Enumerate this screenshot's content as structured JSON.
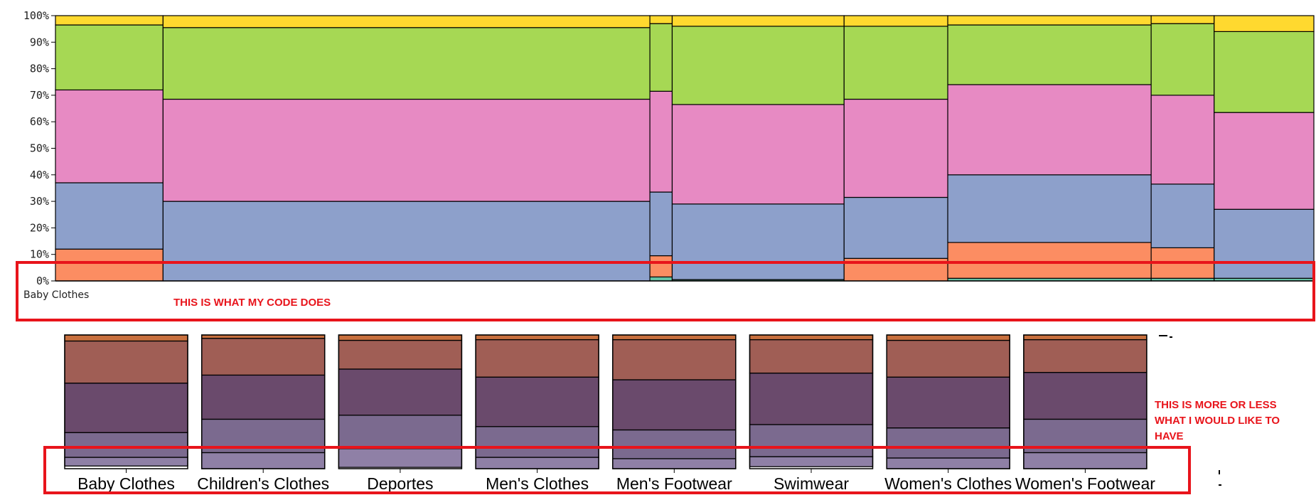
{
  "colors": {
    "annotation": "#e8141b",
    "top_palette": [
      "#66c2a5",
      "#fc8d62",
      "#8da0cb",
      "#e78ac3",
      "#a6d854",
      "#ffd92f"
    ],
    "bottom_palette": [
      "#8f80a6",
      "#7b6a8f",
      "#6a4a6c",
      "#a05e55",
      "#c8703e"
    ]
  },
  "annotations": {
    "top": "THIS IS WHAT MY CODE DOES",
    "bottom": [
      "THIS IS MORE OR LESS",
      "WHAT I WOULD LIKE TO",
      "HAVE"
    ]
  },
  "chart_data": [
    {
      "type": "bar",
      "subtype": "stacked-100-marimekko",
      "y_ticks": [
        "0%",
        "10%",
        "20%",
        "30%",
        "40%",
        "50%",
        "60%",
        "70%",
        "80%",
        "90%",
        "100%"
      ],
      "ylim": [
        0,
        100
      ],
      "x_labels": [
        "Baby Clothes"
      ],
      "columns": [
        {
          "width": 8.2,
          "stack": [
            0,
            12,
            37,
            72,
            96.5,
            100
          ]
        },
        {
          "width": 37.1,
          "stack": [
            0,
            0,
            30,
            68.5,
            95.5,
            100
          ]
        },
        {
          "width": 1.7,
          "stack": [
            1.5,
            9.5,
            33.5,
            71.5,
            97,
            100
          ]
        },
        {
          "width": 13.1,
          "stack": [
            0.5,
            0.5,
            29,
            66.5,
            96,
            100
          ]
        },
        {
          "width": 7.9,
          "stack": [
            0,
            8.5,
            31.5,
            68.5,
            96,
            100
          ]
        },
        {
          "width": 15.5,
          "stack": [
            1,
            14.5,
            40,
            74,
            96.5,
            100
          ]
        },
        {
          "width": 4.8,
          "stack": [
            1,
            12.5,
            36.5,
            70,
            97,
            100
          ]
        },
        {
          "width": 7.6,
          "stack": [
            1,
            1,
            27,
            63.5,
            94,
            100
          ]
        }
      ],
      "grid": false,
      "legend": "none"
    },
    {
      "type": "bar",
      "subtype": "stacked-100",
      "categories": [
        "Baby Clothes",
        "Children's Clothes",
        "Deportes",
        "Men's Clothes",
        "Men's Footwear",
        "Swimwear",
        "Women's Clothes",
        "Women's Footwear"
      ],
      "stacks": [
        [
          2,
          8.5,
          27,
          64,
          95.5,
          100
        ],
        [
          0,
          12,
          37,
          70,
          97.5,
          100
        ],
        [
          1,
          15,
          40,
          74.5,
          96,
          100
        ],
        [
          0,
          8.5,
          31.5,
          68.5,
          96.5,
          100
        ],
        [
          0,
          7.5,
          29,
          66.5,
          96.5,
          100
        ],
        [
          1.5,
          9,
          33,
          71.5,
          96.5,
          100
        ],
        [
          0,
          8,
          30.5,
          68.5,
          96,
          100
        ],
        [
          0,
          12,
          37,
          72,
          96.5,
          100
        ]
      ],
      "grid": false,
      "legend": "none"
    }
  ]
}
